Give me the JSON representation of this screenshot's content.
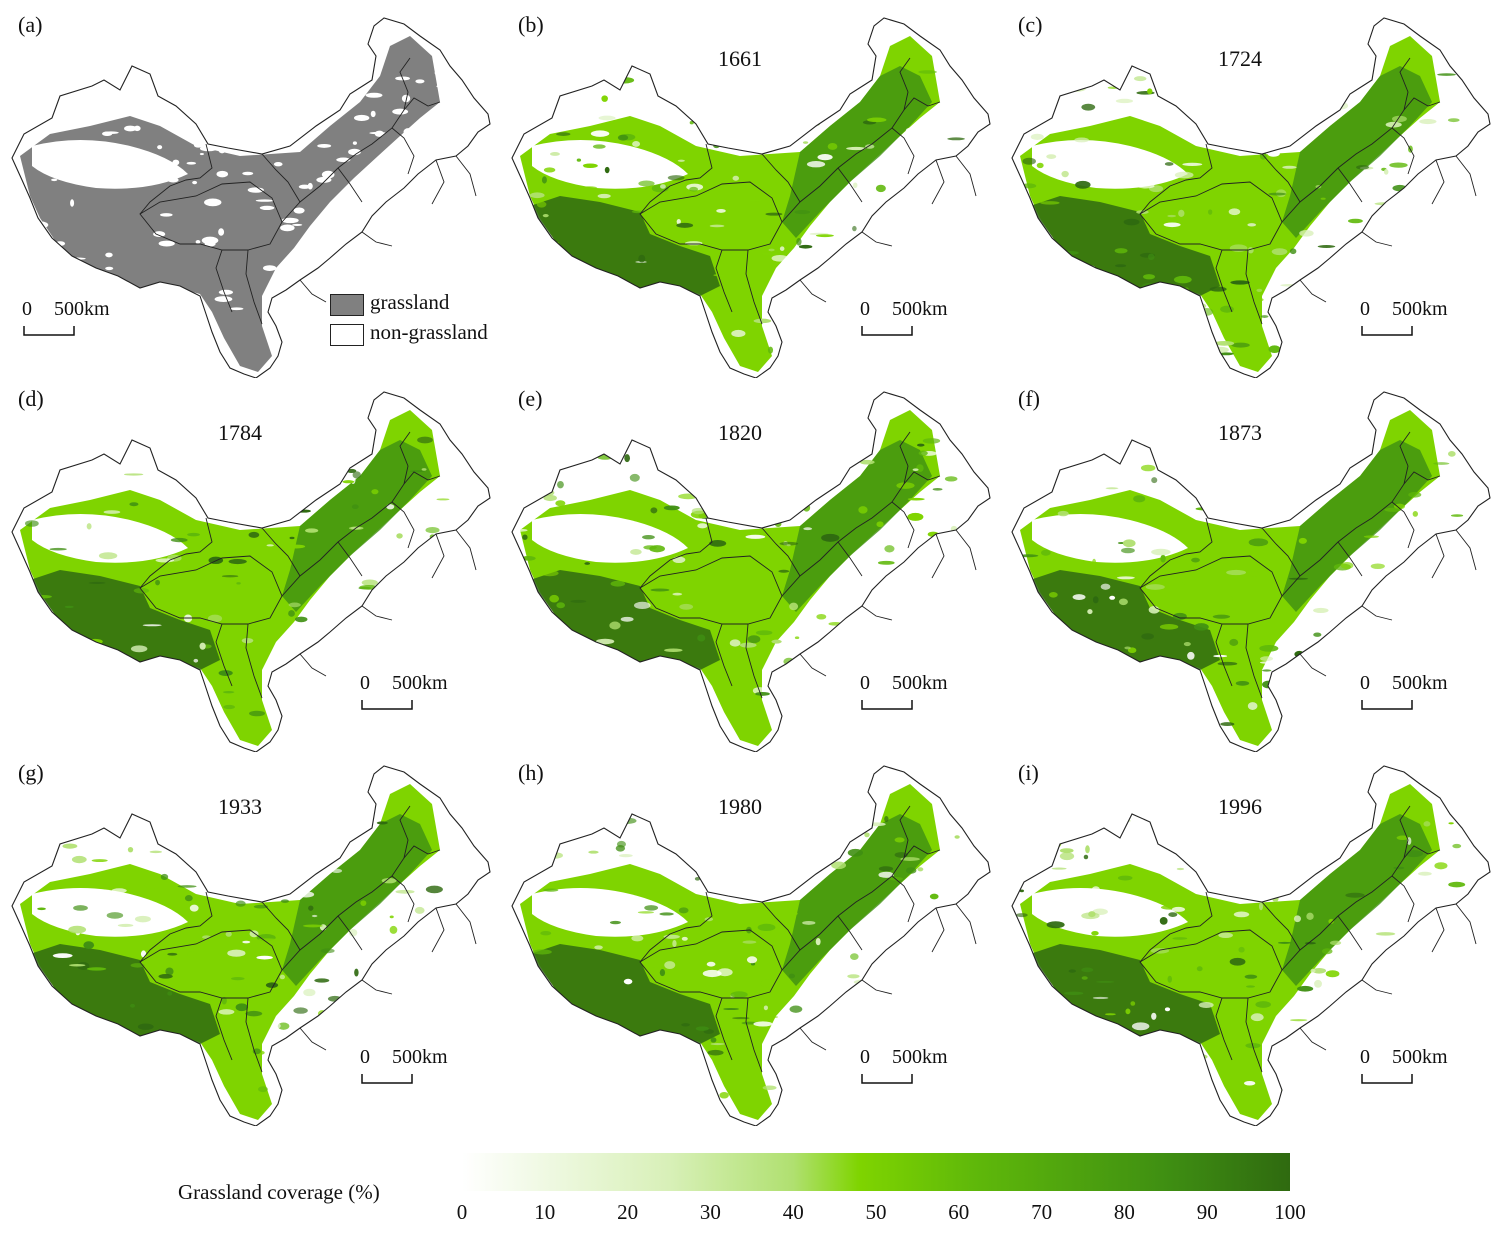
{
  "panels": [
    {
      "label": "(a)",
      "year": "",
      "mode": "binary"
    },
    {
      "label": "(b)",
      "year": "1661",
      "mode": "coverage"
    },
    {
      "label": "(c)",
      "year": "1724",
      "mode": "coverage"
    },
    {
      "label": "(d)",
      "year": "1784",
      "mode": "coverage"
    },
    {
      "label": "(e)",
      "year": "1820",
      "mode": "coverage"
    },
    {
      "label": "(f)",
      "year": "1873",
      "mode": "coverage"
    },
    {
      "label": "(g)",
      "year": "1933",
      "mode": "coverage"
    },
    {
      "label": "(h)",
      "year": "1980",
      "mode": "coverage"
    },
    {
      "label": "(i)",
      "year": "1996",
      "mode": "coverage"
    }
  ],
  "scale_bar": {
    "zero": "0",
    "distance": "500km"
  },
  "legend_a": {
    "grassland": "grassland",
    "non_grassland": "non-grassland"
  },
  "legend_colors": {
    "grassland": "#808080",
    "non_grassland": "#ffffff"
  },
  "colorbar": {
    "title": "Grassland coverage (%)",
    "ticks": [
      "0",
      "10",
      "20",
      "30",
      "40",
      "50",
      "60",
      "70",
      "80",
      "90",
      "100"
    ],
    "colors": [
      "#ffffff",
      "#d8f0b8",
      "#b0e070",
      "#7fd400",
      "#5fb80a",
      "#3f8f12",
      "#2f6a10"
    ]
  }
}
